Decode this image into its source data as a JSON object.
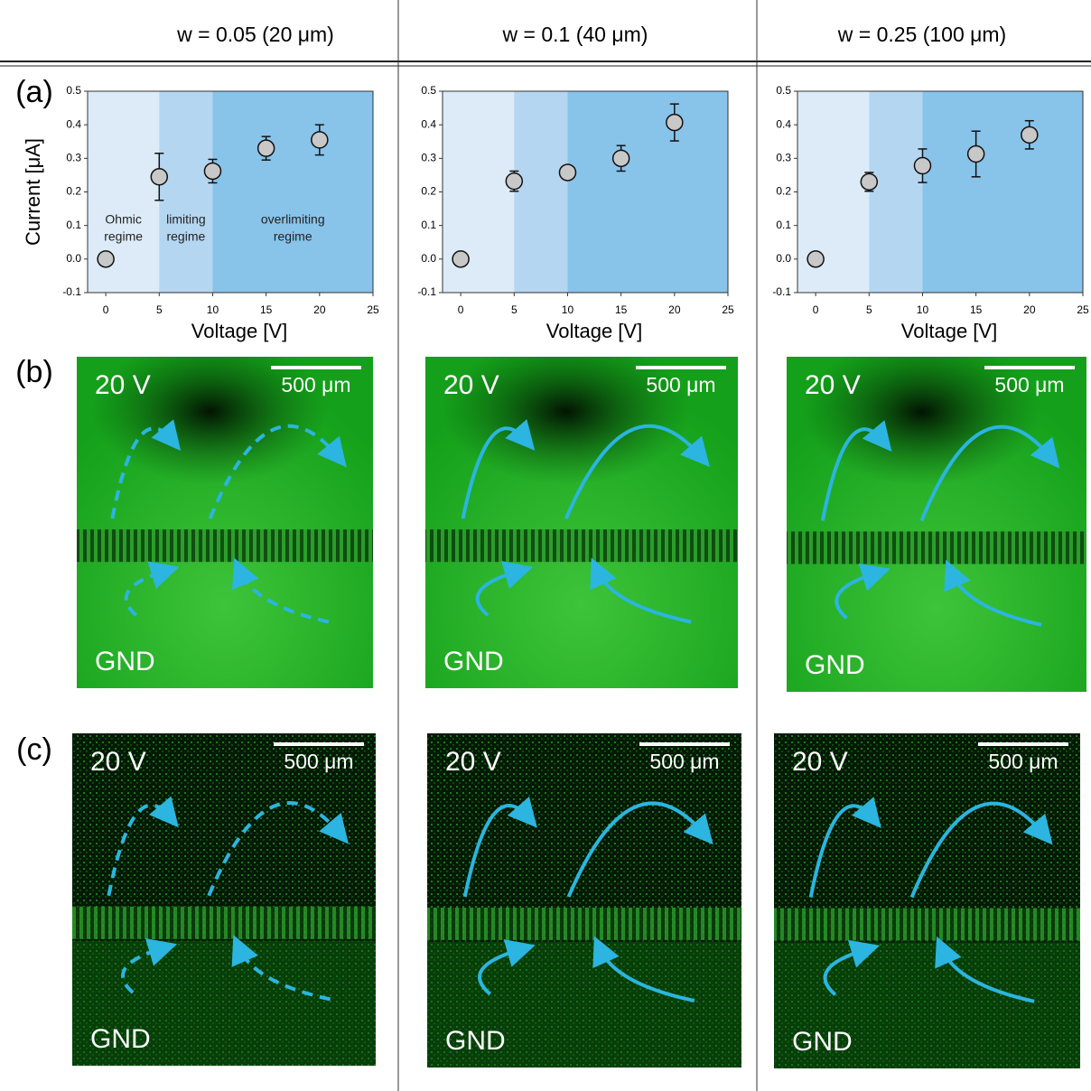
{
  "headers": [
    "w = 0.05 (20 μm)",
    "w = 0.1 (40 μm)",
    "w = 0.25 (100 μm)"
  ],
  "panel_labels": [
    "(a)",
    "(b)",
    "(c)"
  ],
  "chart_data": [
    {
      "type": "scatter",
      "x_label": "Voltage [V]",
      "y_label": "Current [μA]",
      "x": [
        0,
        5,
        10,
        15,
        20
      ],
      "values": [
        0,
        0.245,
        0.262,
        0.33,
        0.355
      ],
      "errors": [
        null,
        0.07,
        0.035,
        0.035,
        0.045
      ],
      "xlim": [
        -1.7,
        25
      ],
      "ylim": [
        -0.1,
        0.5
      ],
      "xticks": [
        0,
        5,
        10,
        15,
        20,
        25
      ],
      "yticks": [
        -0.1,
        {
          "value": 0,
          "label": "0.0"
        },
        0.1,
        0.2,
        0.3,
        0.4,
        0.5
      ],
      "region_bounds": [
        5,
        10
      ],
      "region_colors": [
        "#dcebf7",
        "#b5d6f0",
        "#88c3ea"
      ],
      "region_labels": [
        [
          "Ohmic",
          "regime"
        ],
        [
          "limiting",
          "regime"
        ],
        [
          "overlimiting",
          "regime"
        ]
      ],
      "marker_color": "#c8c8c8"
    },
    {
      "type": "scatter",
      "x_label": "Voltage [V]",
      "x": [
        0,
        5,
        10,
        15,
        20
      ],
      "values": [
        0,
        0.232,
        0.258,
        0.3,
        0.407
      ],
      "errors": [
        null,
        0.03,
        0.02,
        0.038,
        0.055
      ],
      "xlim": [
        -1.7,
        25
      ],
      "ylim": [
        -0.1,
        0.5
      ],
      "xticks": [
        0,
        5,
        10,
        15,
        20,
        25
      ],
      "yticks": [
        -0.1,
        {
          "value": 0,
          "label": "0.0"
        },
        0.1,
        0.2,
        0.3,
        0.4,
        0.5
      ],
      "region_bounds": [
        5,
        10
      ],
      "region_colors": [
        "#dcebf7",
        "#b5d6f0",
        "#88c3ea"
      ],
      "marker_color": "#c8c8c8"
    },
    {
      "type": "scatter",
      "x_label": "Voltage [V]",
      "x": [
        0,
        5,
        10,
        15,
        20
      ],
      "values": [
        0,
        0.23,
        0.278,
        0.313,
        0.37
      ],
      "errors": [
        null,
        0.028,
        0.05,
        0.068,
        0.042
      ],
      "xlim": [
        -1.7,
        25
      ],
      "ylim": [
        -0.1,
        0.5
      ],
      "xticks": [
        0,
        5,
        10,
        15,
        20,
        25
      ],
      "yticks": [
        -0.1,
        {
          "value": 0,
          "label": "0.0"
        },
        0.1,
        0.2,
        0.3,
        0.4,
        0.5
      ],
      "region_bounds": [
        5,
        10
      ],
      "region_colors": [
        "#dcebf7",
        "#b5d6f0",
        "#88c3ea"
      ],
      "marker_color": "#c8c8c8"
    }
  ],
  "micrographs": [
    [
      {
        "top": "20 V",
        "scale": "500 μm",
        "bottom": "GND"
      },
      {
        "top": "20 V",
        "scale": "500 μm",
        "bottom": "GND"
      },
      {
        "top": "20 V",
        "scale": "500 μm",
        "bottom": "GND"
      }
    ],
    [
      {
        "top": "20 V",
        "scale": "500 μm",
        "bottom": "GND"
      },
      {
        "top": "20 V",
        "scale": "500 μm",
        "bottom": "GND"
      },
      {
        "top": "20 V",
        "scale": "500 μm",
        "bottom": "GND"
      }
    ]
  ]
}
